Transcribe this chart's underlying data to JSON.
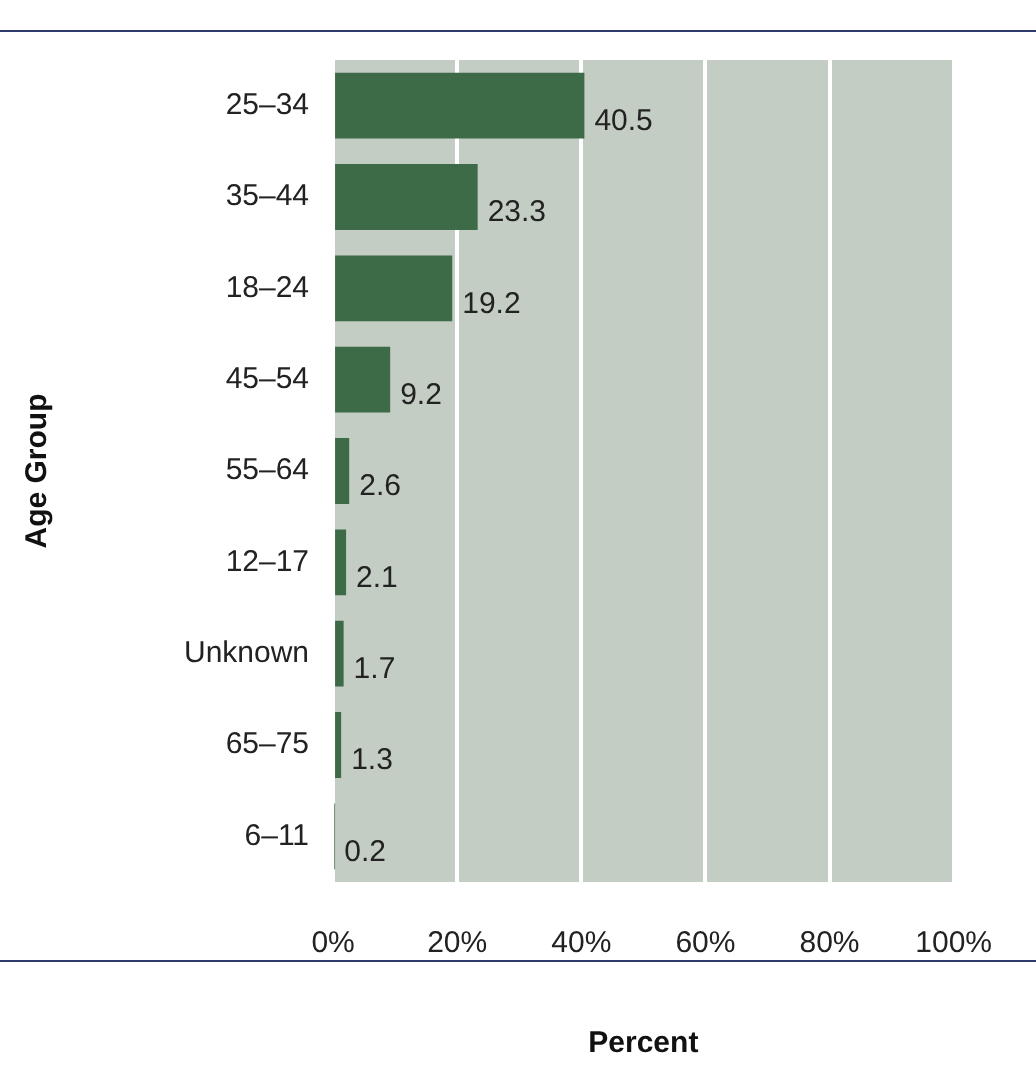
{
  "chart_data": {
    "type": "bar",
    "orientation": "horizontal",
    "xlabel": "Percent",
    "ylabel": "Age Group",
    "categories": [
      "25–34",
      "35–44",
      "18–24",
      "45–54",
      "55–64",
      "12–17",
      "Unknown",
      "65–75",
      "6–11"
    ],
    "values": [
      40.5,
      23.3,
      19.2,
      9.2,
      2.6,
      2.1,
      1.7,
      1.3,
      0.2
    ],
    "color": "#3d6b47",
    "xlim": [
      0,
      100
    ],
    "xticks": [
      {
        "value": 0,
        "label": "0%"
      },
      {
        "value": 20,
        "label": "20%"
      },
      {
        "value": 40,
        "label": "40%"
      },
      {
        "value": 60,
        "label": "60%"
      },
      {
        "value": 80,
        "label": "80%"
      },
      {
        "value": 100,
        "label": "100%"
      }
    ],
    "grid": "x",
    "data_labels": true,
    "legend": false
  }
}
